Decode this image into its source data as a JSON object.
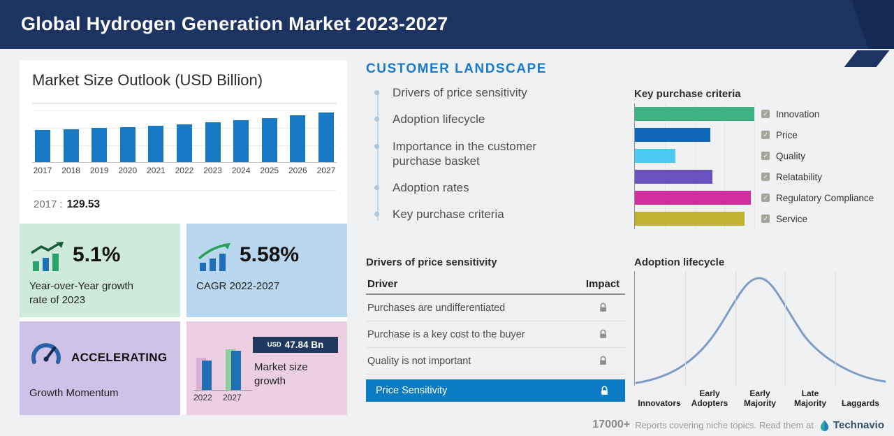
{
  "header": {
    "title": "Global Hydrogen Generation Market 2023-2027"
  },
  "colors": {
    "header_navy": "#1d3463",
    "header_accent": "#152a52",
    "section_blue": "#1a7ac9",
    "highlight_blue": "#0b7cc4",
    "market_bar_blue": "#1779c4",
    "box_green": "#cdeada",
    "box_blue": "#b9d7ee",
    "box_purple": "#cec2e6",
    "box_pink": "#eccfe3"
  },
  "market_panel": {
    "title": "Market Size Outlook (USD Billion)",
    "base_label": "2017 :",
    "base_value": "129.53",
    "stats": {
      "yoy": {
        "value": "5.1%",
        "label": "Year-over-Year growth rate of 2023"
      },
      "cagr": {
        "value": "5.58%",
        "label": "CAGR 2022-2027"
      },
      "momentum": {
        "value": "ACCELERATING",
        "label": "Growth Momentum"
      },
      "growth": {
        "currency": "USD",
        "amount": "47.84 Bn",
        "label": "Market size growth"
      }
    }
  },
  "customer_landscape": {
    "title": "CUSTOMER LANDSCAPE",
    "items": [
      "Drivers of price sensitivity",
      "Adoption lifecycle",
      "Importance in the customer purchase basket",
      "Adoption rates",
      "Key purchase criteria"
    ]
  },
  "price_sensitivity": {
    "title": "Drivers of price sensitivity",
    "columns": {
      "driver": "Driver",
      "impact": "Impact"
    },
    "rows": [
      "Purchases are undifferentiated",
      "Purchase is a key cost to the buyer",
      "Quality is not important"
    ],
    "highlight": "Price Sensitivity"
  },
  "footer": {
    "count": "17000+",
    "text": "Reports covering niche topics. Read them at",
    "brand": "Technavio"
  },
  "ui": {
    "check_glyph": "✓"
  },
  "chart_data": [
    {
      "type": "bar",
      "title": "Market Size Outlook (USD Billion)",
      "categories": [
        "2017",
        "2018",
        "2019",
        "2020",
        "2021",
        "2022",
        "2023",
        "2024",
        "2025",
        "2026",
        "2027"
      ],
      "values": [
        129.53,
        133.9,
        138.5,
        143.2,
        148.2,
        153.37,
        161.19,
        170.2,
        179.7,
        190.0,
        201.21
      ],
      "ylim": [
        0,
        210
      ],
      "bar_color": "#1779c4",
      "annotation": "2017 : 129.53",
      "grid": true,
      "legend": false
    },
    {
      "type": "bar",
      "orientation": "horizontal",
      "title": "Key purchase criteria",
      "categories": [
        "Innovation",
        "Price",
        "Quality",
        "Relatability",
        "Regulatory Compliance",
        "Service"
      ],
      "values": [
        100,
        63,
        34,
        65,
        97,
        92
      ],
      "xlim": [
        0,
        100
      ],
      "colors": [
        "#3cb183",
        "#0e68b6",
        "#4ec9f5",
        "#6b52c1",
        "#ce2f9f",
        "#c0b12f"
      ],
      "legend_position": "right",
      "value_unit": "relative importance (est. from bar lengths)"
    },
    {
      "type": "line",
      "title": "Adoption lifecycle",
      "categories": [
        "Innovators",
        "Early Adopters",
        "Early Majority",
        "Late Majority",
        "Laggards"
      ],
      "values": [
        4,
        38,
        100,
        52,
        8
      ],
      "curve": "bell",
      "line_color": "#7f9cc7",
      "grid": true
    },
    {
      "type": "bar",
      "title": "Market size growth",
      "categories": [
        "2022",
        "2027"
      ],
      "values": [
        153.37,
        201.21
      ],
      "ylim": [
        0,
        210
      ],
      "bar_color": "#1f6fb4",
      "annotation": "USD 47.84 Bn"
    }
  ]
}
